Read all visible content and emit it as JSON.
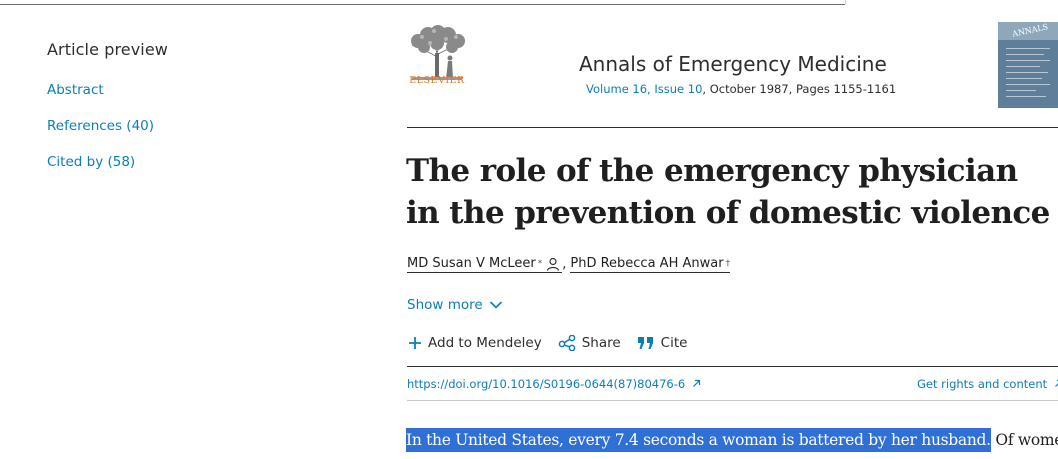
{
  "sidebar": {
    "title": "Article preview",
    "links": [
      "Abstract",
      "References (40)",
      "Cited by (58)"
    ]
  },
  "journal": {
    "publisher": "ELSEVIER",
    "name": "Annals of Emergency Medicine",
    "volume_issue": "Volume 16, Issue 10",
    "date_pages": ", October 1987, Pages 1155-1161",
    "cover_title": "ANNALS"
  },
  "article": {
    "title": "The role of the emergency physician in the prevention of domestic violence",
    "authors": [
      {
        "name": "MD Susan V McLeer",
        "mark": "*"
      },
      {
        "name": "PhD Rebecca AH Anwar",
        "mark": "†"
      }
    ],
    "author_separator": ",",
    "show_more": "Show more",
    "actions": {
      "mendeley": "Add to Mendeley",
      "share": "Share",
      "cite": "Cite"
    },
    "doi": "https://doi.org/10.1016/S0196-0644(87)80476-6",
    "rights": "Get rights and content",
    "abstract_highlighted": "In the United States, every 7.4 seconds a woman is battered by her husband.",
    "abstract_rest": " Of women"
  },
  "colors": {
    "link": "#0c7dbb",
    "publisher_orange": "#e9711c",
    "highlight": "#2f6fd6"
  }
}
